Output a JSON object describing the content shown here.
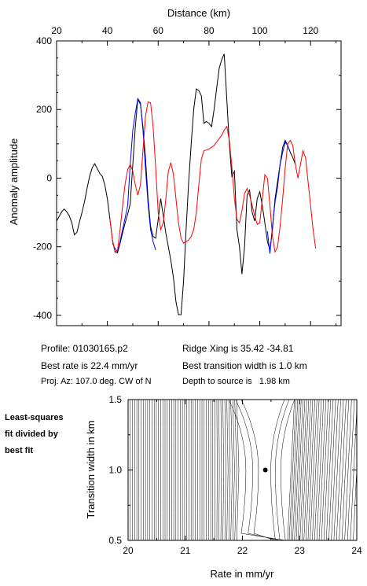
{
  "chart_data": [
    {
      "type": "line",
      "xlabel": "Distance (km)",
      "ylabel": "Anomaly amplitude",
      "xlim": [
        20,
        132
      ],
      "ylim": [
        -430,
        400
      ],
      "x_ticks": [
        "20",
        "40",
        "60",
        "80",
        "100",
        "120"
      ],
      "y_ticks": [
        "400",
        "200",
        "0",
        "-200",
        "-400"
      ],
      "grid": false,
      "series": [
        {
          "color": "#000000",
          "points": [
            [
              20,
              -125
            ],
            [
              21,
              -112
            ],
            [
              22,
              -98
            ],
            [
              23,
              -90
            ],
            [
              24,
              -98
            ],
            [
              25,
              -110
            ],
            [
              26,
              -130
            ],
            [
              27,
              -165
            ],
            [
              28,
              -158
            ],
            [
              29,
              -128
            ],
            [
              30,
              -100
            ],
            [
              31,
              -68
            ],
            [
              32,
              -30
            ],
            [
              33,
              5
            ],
            [
              34,
              30
            ],
            [
              35,
              42
            ],
            [
              36,
              28
            ],
            [
              37,
              14
            ],
            [
              38,
              5
            ],
            [
              39,
              -20
            ],
            [
              40,
              -60
            ],
            [
              41,
              -120
            ],
            [
              42,
              -180
            ],
            [
              43,
              -215
            ],
            [
              44,
              -218
            ],
            [
              45,
              -190
            ],
            [
              46,
              -160
            ],
            [
              47,
              -130
            ],
            [
              48,
              -105
            ],
            [
              49,
              -75
            ],
            [
              50,
              40
            ],
            [
              51,
              150
            ],
            [
              52,
              230
            ],
            [
              53,
              215
            ],
            [
              54,
              150
            ],
            [
              55,
              60
            ],
            [
              56,
              -60
            ],
            [
              57,
              -140
            ],
            [
              58,
              -170
            ],
            [
              59,
              -175
            ],
            [
              60,
              -120
            ],
            [
              61,
              -60
            ],
            [
              62,
              -110
            ],
            [
              63,
              -160
            ],
            [
              64,
              -200
            ],
            [
              65,
              -240
            ],
            [
              66,
              -290
            ],
            [
              67,
              -360
            ],
            [
              68,
              -398
            ],
            [
              69,
              -398
            ],
            [
              70,
              -300
            ],
            [
              71,
              -150
            ],
            [
              72,
              -10
            ],
            [
              73,
              100
            ],
            [
              74,
              200
            ],
            [
              75,
              260
            ],
            [
              76,
              255
            ],
            [
              77,
              240
            ],
            [
              78,
              160
            ],
            [
              79,
              165
            ],
            [
              80,
              160
            ],
            [
              81,
              150
            ],
            [
              82,
              200
            ],
            [
              83,
              260
            ],
            [
              84,
              320
            ],
            [
              85,
              345
            ],
            [
              86,
              362
            ],
            [
              87,
              230
            ],
            [
              88,
              100
            ],
            [
              89,
              5
            ],
            [
              90,
              20
            ],
            [
              91,
              -150
            ],
            [
              92,
              -200
            ],
            [
              93,
              -280
            ],
            [
              94,
              -200
            ],
            [
              95,
              -50
            ],
            [
              96,
              -35
            ],
            [
              97,
              -100
            ],
            [
              98,
              -125
            ],
            [
              99,
              -60
            ],
            [
              100,
              -40
            ],
            [
              101,
              -80
            ],
            [
              102,
              -130
            ],
            [
              103,
              -185
            ],
            [
              104,
              -210
            ],
            [
              105,
              -150
            ],
            [
              106,
              -60
            ],
            [
              107,
              -10
            ],
            [
              108,
              40
            ],
            [
              109,
              90
            ],
            [
              110,
              110
            ],
            [
              111,
              95
            ],
            [
              112,
              75
            ],
            [
              113,
              60
            ],
            [
              114,
              40
            ]
          ]
        },
        {
          "color": "#0000ff",
          "points": [
            [
              42,
              -190
            ],
            [
              43,
              -205
            ],
            [
              44,
              -215
            ],
            [
              45,
              -185
            ],
            [
              46,
              -150
            ],
            [
              47,
              -115
            ],
            [
              48,
              -80
            ],
            [
              49,
              40
            ],
            [
              50,
              140
            ],
            [
              51,
              190
            ],
            [
              52,
              232
            ],
            [
              53,
              220
            ],
            [
              54,
              140
            ],
            [
              55,
              30
            ],
            [
              56,
              -75
            ],
            [
              57,
              -150
            ],
            [
              58,
              -185
            ],
            [
              59,
              -210
            ],
            [
              103,
              -155
            ],
            [
              104,
              -220
            ],
            [
              105,
              -140
            ],
            [
              106,
              -70
            ],
            [
              107,
              -25
            ],
            [
              108,
              40
            ],
            [
              109,
              75
            ],
            [
              110,
              105
            ],
            [
              111,
              95
            ],
            [
              112,
              75
            ]
          ]
        },
        {
          "color": "#ff0000",
          "points": [
            [
              41,
              -120
            ],
            [
              42,
              -180
            ],
            [
              43,
              -215
            ],
            [
              44,
              -210
            ],
            [
              45,
              -150
            ],
            [
              46,
              -80
            ],
            [
              47,
              -15
            ],
            [
              48,
              25
            ],
            [
              49,
              40
            ],
            [
              50,
              20
            ],
            [
              51,
              -20
            ],
            [
              52,
              -50
            ],
            [
              53,
              -20
            ],
            [
              54,
              80
            ],
            [
              55,
              180
            ],
            [
              56,
              222
            ],
            [
              57,
              220
            ],
            [
              58,
              150
            ],
            [
              59,
              30
            ],
            [
              60,
              -100
            ],
            [
              61,
              -150
            ],
            [
              62,
              -130
            ],
            [
              63,
              -60
            ],
            [
              64,
              20
            ],
            [
              65,
              45
            ],
            [
              66,
              10
            ],
            [
              67,
              -60
            ],
            [
              68,
              -130
            ],
            [
              69,
              -175
            ],
            [
              70,
              -190
            ],
            [
              71,
              -185
            ],
            [
              72,
              -180
            ],
            [
              73,
              -170
            ],
            [
              74,
              -150
            ],
            [
              75,
              -100
            ],
            [
              76,
              -20
            ],
            [
              77,
              55
            ],
            [
              78,
              80
            ],
            [
              79,
              82
            ],
            [
              80,
              85
            ],
            [
              81,
              90
            ],
            [
              82,
              95
            ],
            [
              83,
              105
            ],
            [
              84,
              115
            ],
            [
              85,
              125
            ],
            [
              86,
              140
            ],
            [
              87,
              150
            ],
            [
              88,
              110
            ],
            [
              89,
              35
            ],
            [
              90,
              -60
            ],
            [
              91,
              -120
            ],
            [
              92,
              -130
            ],
            [
              93,
              -95
            ],
            [
              94,
              -45
            ],
            [
              95,
              -30
            ],
            [
              96,
              -50
            ],
            [
              97,
              -80
            ],
            [
              98,
              -110
            ],
            [
              99,
              -135
            ],
            [
              100,
              -130
            ],
            [
              101,
              -60
            ],
            [
              102,
              10
            ],
            [
              103,
              0
            ],
            [
              104,
              -80
            ],
            [
              105,
              -170
            ],
            [
              106,
              -215
            ],
            [
              107,
              -200
            ],
            [
              108,
              -140
            ],
            [
              109,
              -60
            ],
            [
              110,
              30
            ],
            [
              111,
              100
            ],
            [
              112,
              110
            ],
            [
              113,
              95
            ],
            [
              114,
              40
            ],
            [
              115,
              0
            ],
            [
              116,
              40
            ],
            [
              117,
              80
            ],
            [
              118,
              60
            ],
            [
              119,
              -10
            ],
            [
              120,
              -80
            ],
            [
              121,
              -150
            ],
            [
              122,
              -205
            ]
          ]
        }
      ]
    },
    {
      "type": "contour",
      "xlabel": "Rate in mm/yr",
      "ylabel": "Transition width in km",
      "xlim": [
        20,
        24
      ],
      "ylim": [
        0.5,
        1.5
      ],
      "x_ticks": [
        "20",
        "21",
        "22",
        "23",
        "24"
      ],
      "y_ticks": [
        "1.5",
        "1.0",
        "0.5"
      ],
      "best_fit": {
        "rate": 22.4,
        "width": 1.0
      }
    }
  ],
  "info": {
    "profile": "Profile: 01030165.p2",
    "ridge_xing": "Ridge Xing is 35.42 -34.81",
    "best_rate": "Best rate is 22.4 mm/yr",
    "best_width": "Best transition width is 1.0 km",
    "proj_az": "Proj. Az: 107.0 deg. CW of N",
    "depth": "Depth to source is   1.98 km"
  },
  "side_note": [
    "Least-squares",
    "fit divided by",
    "best fit"
  ]
}
